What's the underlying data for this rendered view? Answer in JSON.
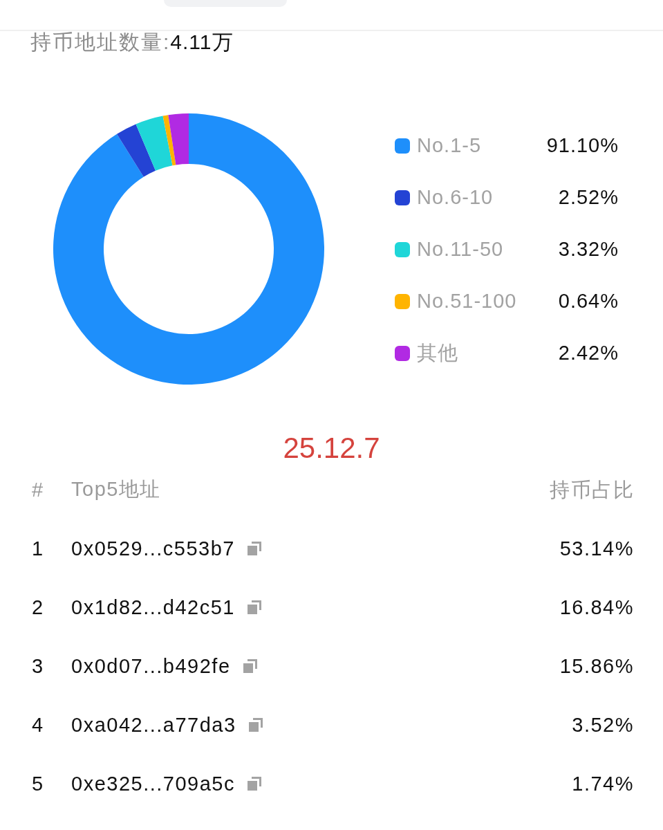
{
  "chart_data": {
    "type": "donut",
    "title": "持币地址数量:",
    "subtitle": "4.11万",
    "categories": [
      "No.1-5",
      "No.6-10",
      "No.11-50",
      "No.51-100",
      "其他"
    ],
    "values": [
      91.1,
      2.52,
      3.32,
      0.64,
      2.42
    ],
    "value_labels": [
      "91.10%",
      "2.52%",
      "3.32%",
      "0.64%",
      "2.42%"
    ],
    "colors": [
      "#1e8ffb",
      "#2443d4",
      "#1fd6d8",
      "#ffb400",
      "#b12ae3"
    ],
    "legend": "right",
    "annotations": [
      "25.12.7",
      "#",
      "Top5地址",
      "持币占比",
      "1",
      "0x0529...c553b7",
      "53.14%",
      "2",
      "0x1d82...d42c51",
      "16.84%",
      "3",
      "0x0d07...b492fe",
      "15.86%",
      "4",
      "0xa042...a77da3",
      "3.52%",
      "5",
      "0xe325...709a5c",
      "1.74%"
    ]
  }
}
